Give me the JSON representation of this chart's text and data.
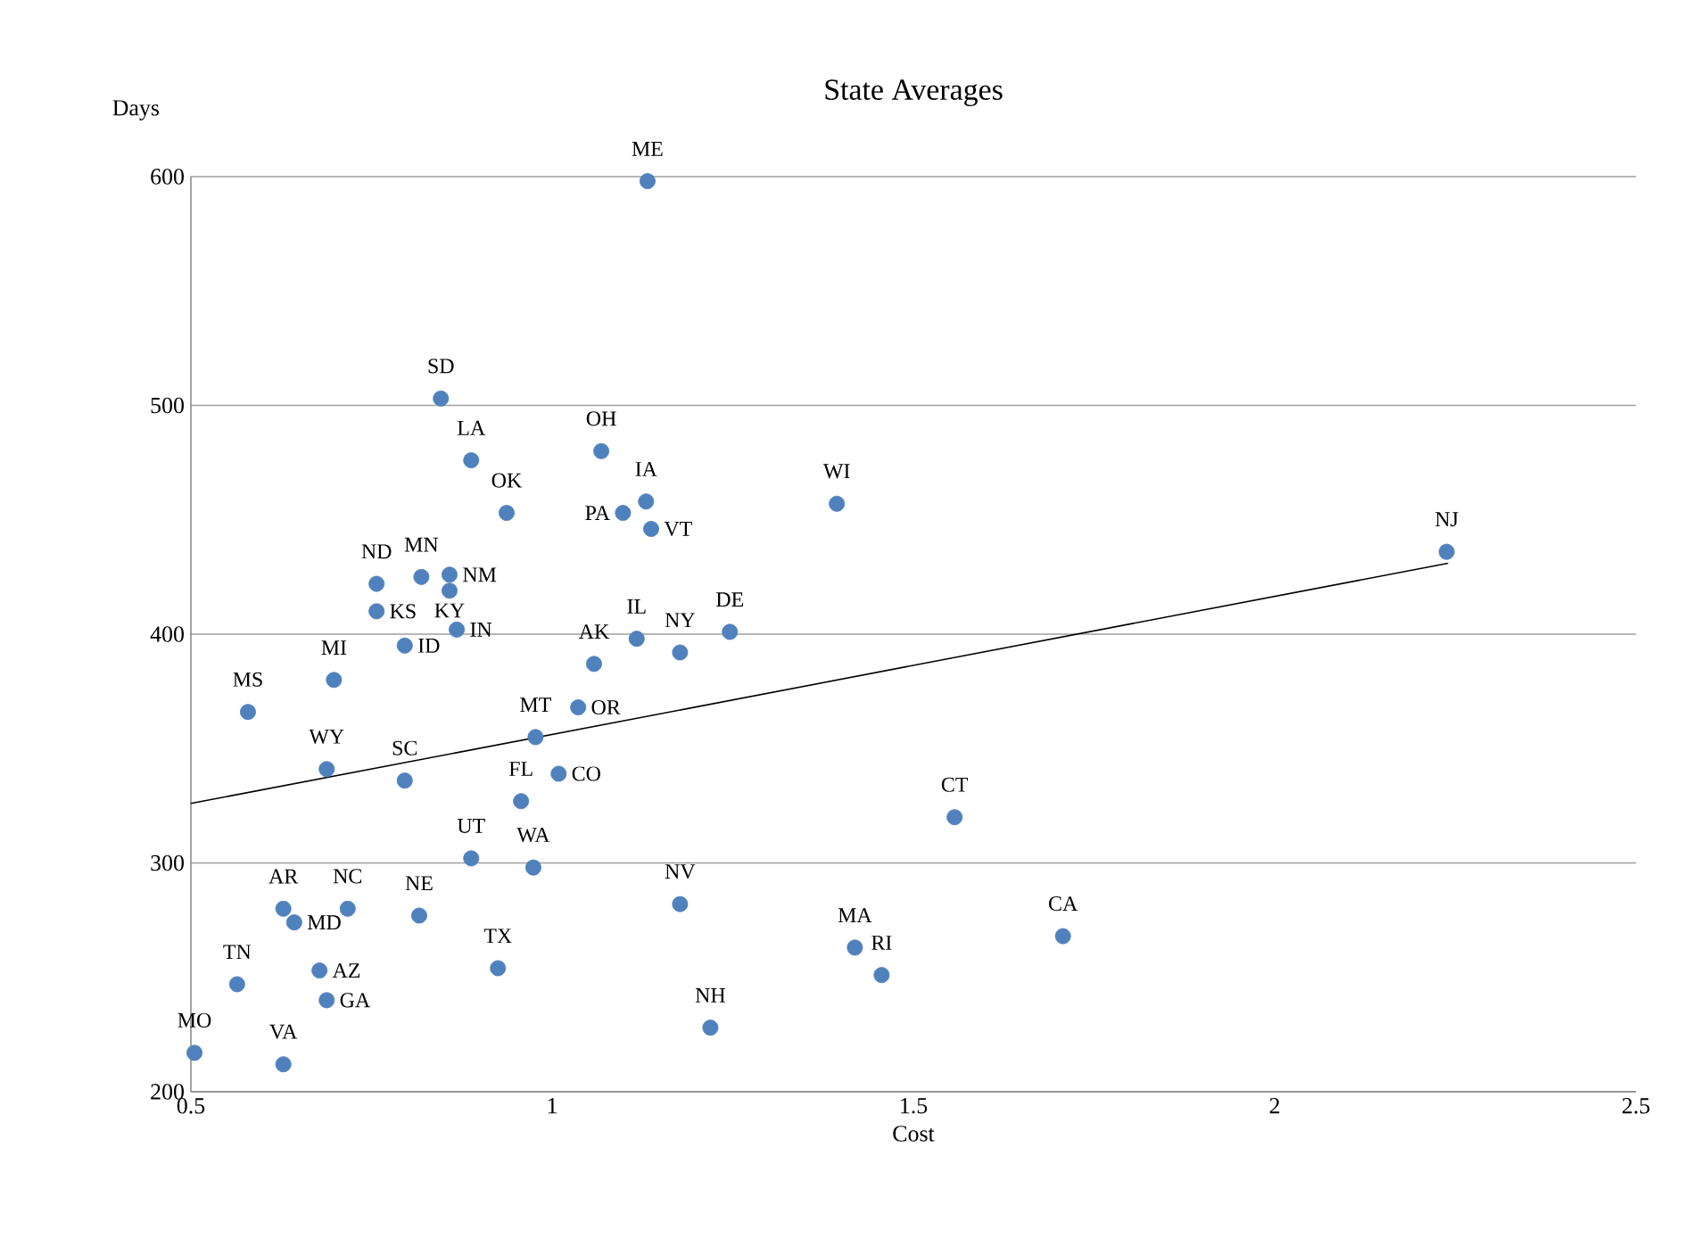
{
  "chart_data": {
    "type": "scatter",
    "title": "State Averages",
    "xlabel": "Cost",
    "ylabel": "Days",
    "xlim": [
      0.5,
      2.5
    ],
    "xticks": [
      0.5,
      1,
      1.5,
      2,
      2.5
    ],
    "ylim": [
      200,
      600
    ],
    "yticks": [
      200,
      300,
      400,
      500,
      600
    ],
    "grid": "y",
    "series": [
      {
        "color": "#4f81bd",
        "marker": "circle",
        "x": [
          1.132,
          0.846,
          0.888,
          0.937,
          1.068,
          1.13,
          1.098,
          1.137,
          1.394,
          2.238,
          0.757,
          0.819,
          0.858,
          0.858,
          0.757,
          0.868,
          0.796,
          0.698,
          0.579,
          1.058,
          1.117,
          1.177,
          1.246,
          1.036,
          0.977,
          1.009,
          0.957,
          0.888,
          0.974,
          0.688,
          0.796,
          0.628,
          0.643,
          0.717,
          0.816,
          0.678,
          0.688,
          0.564,
          0.505,
          0.628,
          0.925,
          1.177,
          1.219,
          1.419,
          1.456,
          1.557,
          1.707
        ],
        "values": [
          598,
          503,
          476,
          453,
          480,
          458,
          453,
          446,
          457,
          436,
          422,
          425,
          426,
          419,
          410,
          402,
          395,
          380,
          366,
          387,
          398,
          392,
          401,
          368,
          355,
          339,
          327,
          302,
          298,
          341,
          336,
          280,
          274,
          280,
          277,
          253,
          240,
          247,
          217,
          212,
          254,
          282,
          228,
          263,
          251,
          320,
          268
        ]
      },
      {
        "type": "line",
        "color": "#000000",
        "marker": "none",
        "x": [
          0.5,
          2.24
        ],
        "values": [
          326,
          431
        ]
      }
    ],
    "annotations": [
      {
        "text": "ME",
        "x": 1.132,
        "y": 598
      },
      {
        "text": "SD",
        "x": 0.846,
        "y": 503
      },
      {
        "text": "LA",
        "x": 0.888,
        "y": 476
      },
      {
        "text": "OK",
        "x": 0.937,
        "y": 453
      },
      {
        "text": "OH",
        "x": 1.068,
        "y": 480
      },
      {
        "text": "IA",
        "x": 1.13,
        "y": 458
      },
      {
        "text": "PA",
        "x": 1.098,
        "y": 453
      },
      {
        "text": "VT",
        "x": 1.137,
        "y": 446
      },
      {
        "text": "WI",
        "x": 1.394,
        "y": 457
      },
      {
        "text": "NJ",
        "x": 2.238,
        "y": 436
      },
      {
        "text": "ND",
        "x": 0.757,
        "y": 422
      },
      {
        "text": "MN",
        "x": 0.819,
        "y": 425
      },
      {
        "text": "NM",
        "x": 0.858,
        "y": 426
      },
      {
        "text": "KY",
        "x": 0.858,
        "y": 419
      },
      {
        "text": "KS",
        "x": 0.757,
        "y": 410
      },
      {
        "text": "IN",
        "x": 0.868,
        "y": 402
      },
      {
        "text": "ID",
        "x": 0.796,
        "y": 395
      },
      {
        "text": "MI",
        "x": 0.698,
        "y": 380
      },
      {
        "text": "MS",
        "x": 0.579,
        "y": 366
      },
      {
        "text": "AK",
        "x": 1.058,
        "y": 387
      },
      {
        "text": "IL",
        "x": 1.117,
        "y": 398
      },
      {
        "text": "NY",
        "x": 1.177,
        "y": 392
      },
      {
        "text": "DE",
        "x": 1.246,
        "y": 401
      },
      {
        "text": "OR",
        "x": 1.036,
        "y": 368
      },
      {
        "text": "MT",
        "x": 0.977,
        "y": 355
      },
      {
        "text": "CO",
        "x": 1.009,
        "y": 339
      },
      {
        "text": "FL",
        "x": 0.957,
        "y": 327
      },
      {
        "text": "UT",
        "x": 0.888,
        "y": 302
      },
      {
        "text": "WA",
        "x": 0.974,
        "y": 298
      },
      {
        "text": "WY",
        "x": 0.688,
        "y": 341
      },
      {
        "text": "SC",
        "x": 0.796,
        "y": 336
      },
      {
        "text": "AR",
        "x": 0.628,
        "y": 280
      },
      {
        "text": "MD",
        "x": 0.643,
        "y": 274
      },
      {
        "text": "NC",
        "x": 0.717,
        "y": 280
      },
      {
        "text": "NE",
        "x": 0.816,
        "y": 277
      },
      {
        "text": "AZ",
        "x": 0.678,
        "y": 253
      },
      {
        "text": "GA",
        "x": 0.688,
        "y": 240
      },
      {
        "text": "TN",
        "x": 0.564,
        "y": 247
      },
      {
        "text": "MO",
        "x": 0.505,
        "y": 217
      },
      {
        "text": "VA",
        "x": 0.628,
        "y": 212
      },
      {
        "text": "TX",
        "x": 0.925,
        "y": 254
      },
      {
        "text": "NV",
        "x": 1.177,
        "y": 282
      },
      {
        "text": "NH",
        "x": 1.219,
        "y": 228
      },
      {
        "text": "MA",
        "x": 1.419,
        "y": 263
      },
      {
        "text": "RI",
        "x": 1.456,
        "y": 251
      },
      {
        "text": "CT",
        "x": 1.557,
        "y": 320
      },
      {
        "text": "CA",
        "x": 1.707,
        "y": 268
      }
    ]
  }
}
